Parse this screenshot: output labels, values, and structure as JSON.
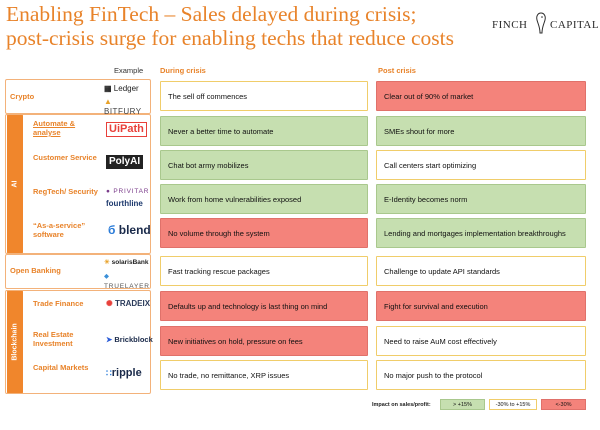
{
  "title_line1": "Enabling FinTech – Sales delayed during crisis;",
  "title_line2": "post-crisis surge for enabling techs that reduce costs",
  "logo": {
    "left": "FINCH",
    "right": "CAPITAL"
  },
  "headers": {
    "example": "Example",
    "during": "During crisis",
    "post": "Post crisis"
  },
  "groups": {
    "ai": "AI",
    "blockchain": "Blockchain"
  },
  "rows": [
    {
      "category": "Crypto",
      "logos": [
        "Ledger",
        "BITFURY"
      ],
      "during": "The sell off commences",
      "post": "Clear out of 90% of market"
    },
    {
      "category": "Automate & analyse",
      "logos": [
        "UiPath"
      ],
      "during": "Never a better time to automate",
      "post": "SMEs shout for more"
    },
    {
      "category": "Customer Service",
      "logos": [
        "PolyAI"
      ],
      "during": "Chat bot army mobilizes",
      "post": "Call centers start optimizing"
    },
    {
      "category": "RegTech/ Security",
      "logos": [
        "PRIVITAR",
        "fourthline"
      ],
      "during": "Work from home vulnerabilities exposed",
      "post": "E-Identity becomes norm"
    },
    {
      "category": "“As-a-service” software",
      "logos": [
        "blend"
      ],
      "during": "No volume through the system",
      "post": "Lending and mortgages implementation breakthroughs"
    },
    {
      "category": "Open Banking",
      "logos": [
        "solarisBank",
        "TRUELAYER"
      ],
      "during": "Fast tracking rescue packages",
      "post": "Challenge to update API standards"
    },
    {
      "category": "Trade Finance",
      "logos": [
        "TRADEIX"
      ],
      "during": "Defaults up and technology is last thing on mind",
      "post": "Fight for survival and execution"
    },
    {
      "category": "Real Estate Investment",
      "logos": [
        "Brickblock"
      ],
      "during": "New initiatives on hold, pressure on fees",
      "post": "Need to raise AuM cost effectively"
    },
    {
      "category": "Capital Markets",
      "logos": [
        "ripple"
      ],
      "during": "No trade, no remittance, XRP issues",
      "post": "No major push to the protocol"
    }
  ],
  "legend": {
    "label": "Impact on sales/profit:",
    "high": "> +15%",
    "mid": "-30% to +15%",
    "low": "<-30%"
  },
  "colors": {
    "accent": "#e8832a",
    "green": "#c6dfb0",
    "red": "#f4837b",
    "white": "#ffffff"
  }
}
